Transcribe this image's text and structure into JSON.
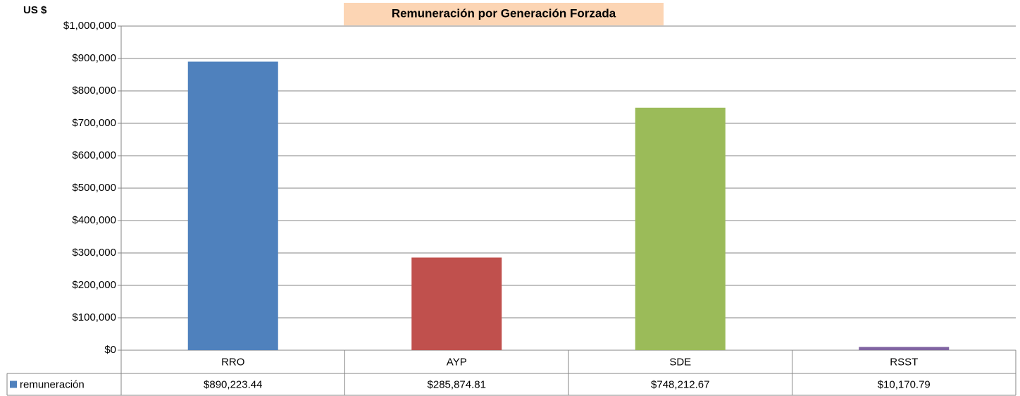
{
  "chart_data": {
    "type": "bar",
    "title": "Remuneración por Generación Forzada",
    "ylabel": "US $",
    "categories": [
      "RRO",
      "AYP",
      "SDE",
      "RSST"
    ],
    "series": [
      {
        "name": "remuneración",
        "color": "#4f81bd",
        "colors": [
          "#4f81bd",
          "#c0504d",
          "#9bbb59",
          "#8064a2"
        ],
        "values": [
          890223.44,
          285874.81,
          748212.67,
          10170.79
        ],
        "value_labels": [
          "$890,223.44",
          "$285,874.81",
          "$748,212.67",
          "$10,170.79"
        ]
      }
    ],
    "ylim": [
      0,
      1000000
    ],
    "yticks": [
      {
        "value": 0,
        "label": "$0"
      },
      {
        "value": 100000,
        "label": "$100,000"
      },
      {
        "value": 200000,
        "label": "$200,000"
      },
      {
        "value": 300000,
        "label": "$300,000"
      },
      {
        "value": 400000,
        "label": "$400,000"
      },
      {
        "value": 500000,
        "label": "$500,000"
      },
      {
        "value": 600000,
        "label": "$600,000"
      },
      {
        "value": 700000,
        "label": "$700,000"
      },
      {
        "value": 800000,
        "label": "$800,000"
      },
      {
        "value": 900000,
        "label": "$900,000"
      },
      {
        "value": 1000000,
        "label": "$1,000,000"
      }
    ],
    "grid": true
  }
}
